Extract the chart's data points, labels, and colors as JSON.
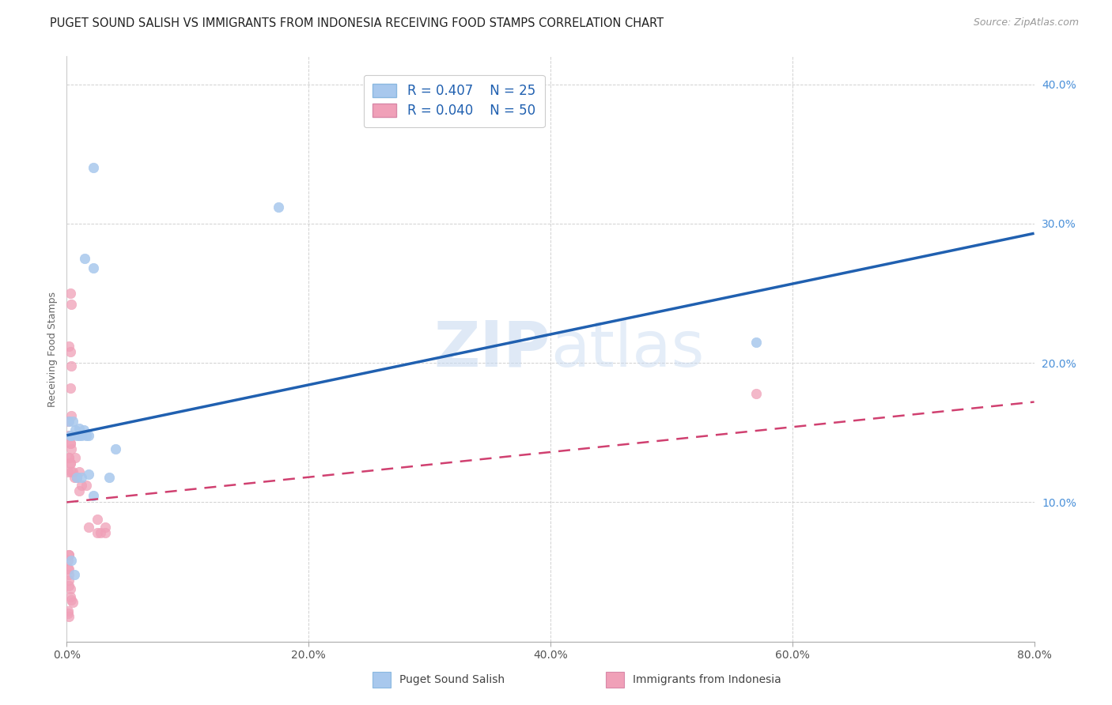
{
  "title": "PUGET SOUND SALISH VS IMMIGRANTS FROM INDONESIA RECEIVING FOOD STAMPS CORRELATION CHART",
  "source": "Source: ZipAtlas.com",
  "ylabel": "Receiving Food Stamps",
  "xlim": [
    0,
    0.8
  ],
  "ylim": [
    0,
    0.42
  ],
  "legend1_label": "Puget Sound Salish",
  "legend2_label": "Immigrants from Indonesia",
  "R1": 0.407,
  "N1": 25,
  "R2": 0.04,
  "N2": 50,
  "color_blue": "#a8c8ed",
  "color_pink": "#f0a0b8",
  "color_blue_line": "#2060b0",
  "color_pink_line": "#d04070",
  "watermark_zip": "ZIP",
  "watermark_atlas": "atlas",
  "blue_line_x0": 0.0,
  "blue_line_y0": 0.148,
  "blue_line_x1": 0.8,
  "blue_line_y1": 0.293,
  "pink_line_x0": 0.0,
  "pink_line_y0": 0.1,
  "pink_line_x1": 0.8,
  "pink_line_y1": 0.172,
  "blue_points_x": [
    0.022,
    0.015,
    0.022,
    0.002,
    0.003,
    0.004,
    0.005,
    0.007,
    0.008,
    0.01,
    0.01,
    0.012,
    0.014,
    0.016,
    0.018,
    0.008,
    0.012,
    0.018,
    0.022,
    0.04,
    0.57,
    0.004,
    0.006,
    0.035,
    0.175
  ],
  "blue_points_y": [
    0.34,
    0.275,
    0.268,
    0.158,
    0.148,
    0.148,
    0.158,
    0.152,
    0.148,
    0.153,
    0.148,
    0.148,
    0.152,
    0.148,
    0.148,
    0.118,
    0.118,
    0.12,
    0.105,
    0.138,
    0.215,
    0.058,
    0.048,
    0.118,
    0.312
  ],
  "pink_points_x": [
    0.001,
    0.002,
    0.003,
    0.004,
    0.002,
    0.003,
    0.003,
    0.004,
    0.004,
    0.001,
    0.002,
    0.003,
    0.003,
    0.003,
    0.004,
    0.002,
    0.003,
    0.003,
    0.004,
    0.005,
    0.006,
    0.007,
    0.008,
    0.01,
    0.008,
    0.01,
    0.012,
    0.016,
    0.018,
    0.025,
    0.025,
    0.028,
    0.002,
    0.002,
    0.001,
    0.001,
    0.002,
    0.002,
    0.002,
    0.002,
    0.003,
    0.003,
    0.004,
    0.005,
    0.001,
    0.001,
    0.002,
    0.032,
    0.032,
    0.57
  ],
  "pink_points_y": [
    0.122,
    0.132,
    0.25,
    0.242,
    0.212,
    0.208,
    0.182,
    0.198,
    0.162,
    0.158,
    0.148,
    0.148,
    0.142,
    0.142,
    0.138,
    0.132,
    0.128,
    0.128,
    0.122,
    0.122,
    0.118,
    0.132,
    0.118,
    0.122,
    0.118,
    0.108,
    0.112,
    0.112,
    0.082,
    0.078,
    0.088,
    0.078,
    0.062,
    0.062,
    0.058,
    0.052,
    0.052,
    0.048,
    0.044,
    0.04,
    0.038,
    0.032,
    0.03,
    0.028,
    0.022,
    0.02,
    0.018,
    0.082,
    0.078,
    0.178
  ],
  "title_fontsize": 10.5,
  "source_fontsize": 9,
  "axis_label_fontsize": 9,
  "tick_fontsize": 10,
  "legend_fontsize": 12
}
